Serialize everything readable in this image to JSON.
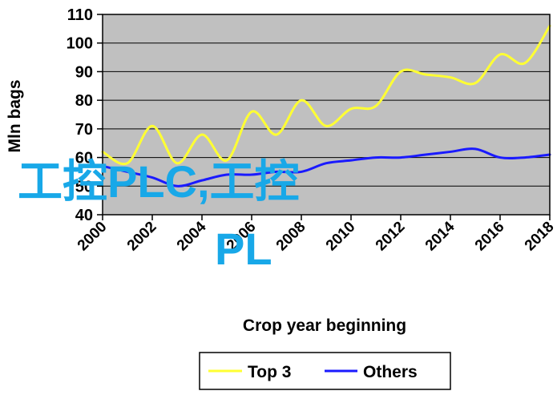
{
  "chart_data": {
    "type": "line",
    "title": "",
    "xlabel": "Crop year beginning",
    "ylabel": "Mln bags",
    "xlim": [
      2000,
      2018
    ],
    "ylim": [
      40,
      110
    ],
    "yticks": [
      40,
      50,
      60,
      70,
      80,
      90,
      100,
      110
    ],
    "xticks": [
      "2000",
      "2002",
      "2004",
      "2006",
      "2008",
      "2010",
      "2012",
      "2014",
      "2016",
      "2018"
    ],
    "grid": "horizontal",
    "legend_position": "bottom",
    "background_color": "#c0c0c0",
    "x": [
      2000,
      2001,
      2002,
      2003,
      2004,
      2005,
      2006,
      2007,
      2008,
      2009,
      2010,
      2011,
      2012,
      2013,
      2014,
      2015,
      2016,
      2017,
      2018
    ],
    "series": [
      {
        "name": "Top 3",
        "color": "#ffff33",
        "values": [
          62,
          58,
          71,
          58,
          68,
          59,
          76,
          68,
          80,
          71,
          77,
          78,
          90,
          89,
          88,
          86,
          96,
          93,
          106
        ]
      },
      {
        "name": "Others",
        "color": "#1a1aff",
        "values": [
          57,
          55,
          53,
          50,
          52,
          54,
          54,
          55,
          55,
          58,
          59,
          60,
          60,
          61,
          62,
          63,
          60,
          60,
          61
        ]
      }
    ]
  },
  "watermark": {
    "line1": "工控PLC,工控",
    "line2": "PL"
  }
}
